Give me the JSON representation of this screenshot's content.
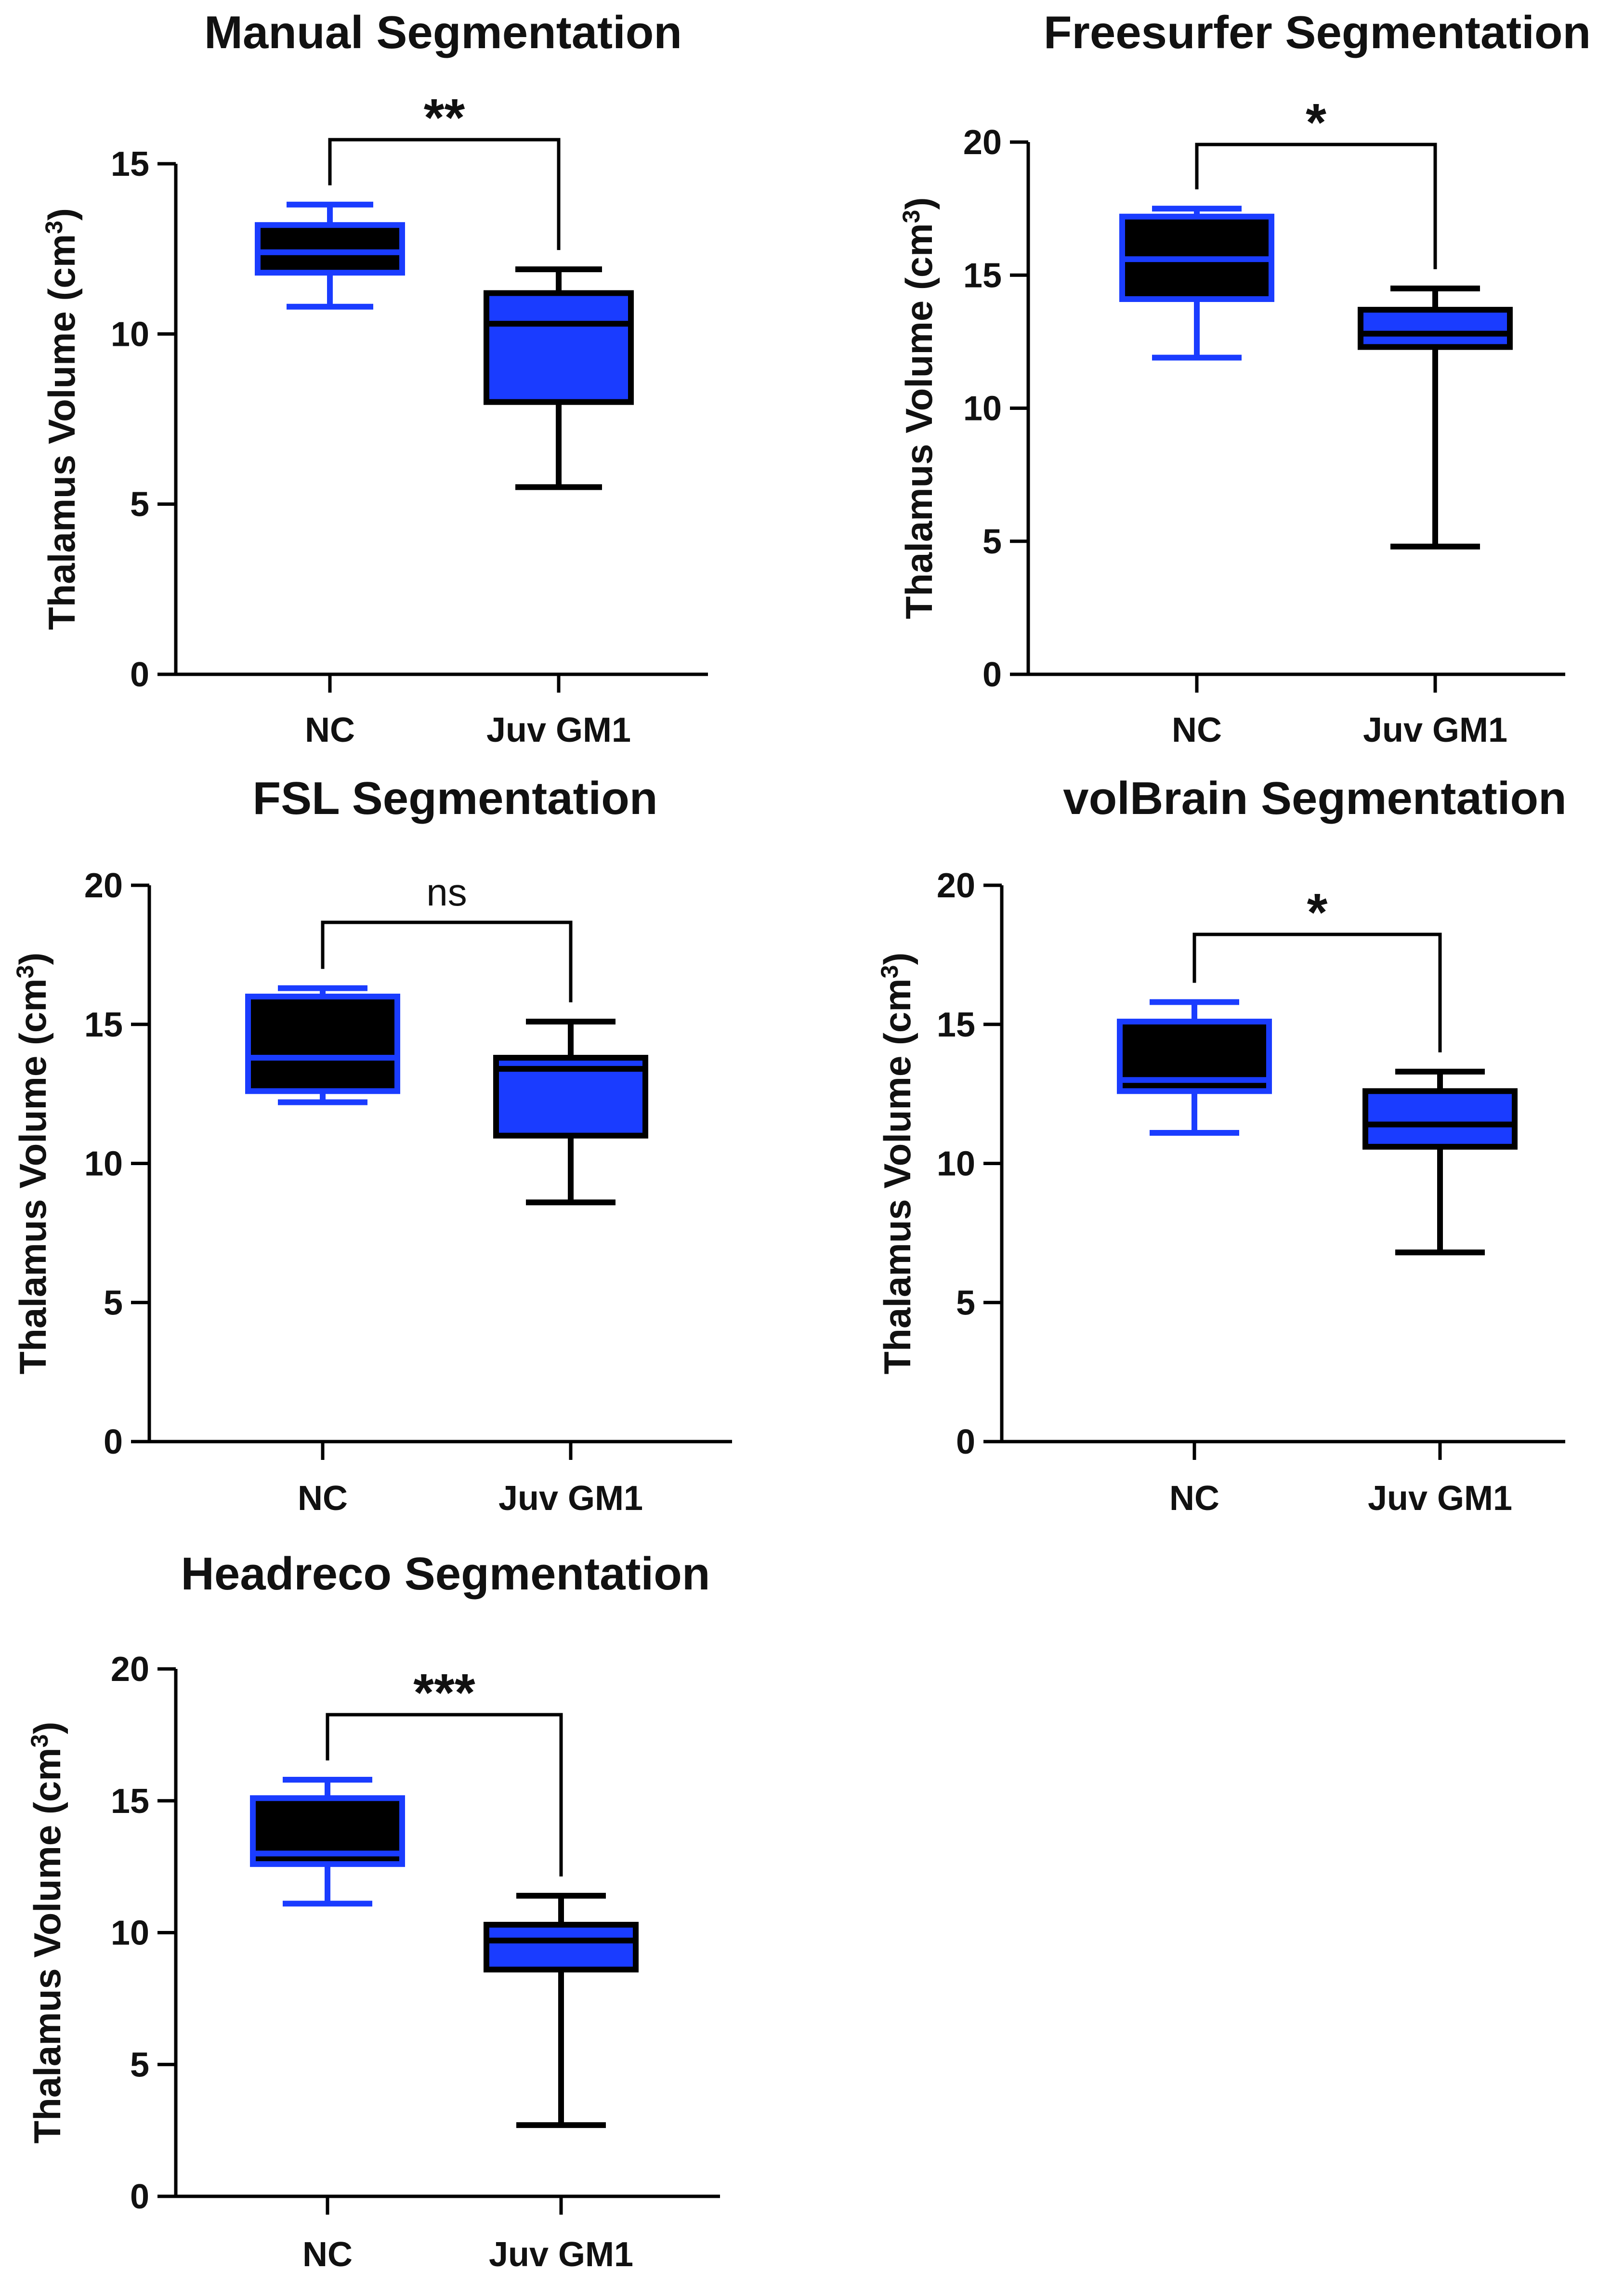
{
  "chart_data": [
    {
      "type": "box",
      "title": "Manual Segmentation",
      "ylabel": "Thalamus Volume (cm",
      "ylabel_sup": "3",
      "ylabel_end": ")",
      "categories": [
        "NC",
        "Juv GM1"
      ],
      "ylim": [
        0,
        15
      ],
      "yticks": [
        0,
        5,
        10,
        15
      ],
      "significance": "**",
      "groups": [
        {
          "name": "NC",
          "min": 10.8,
          "q1": 11.8,
          "median": 12.4,
          "q3": 13.2,
          "max": 13.8,
          "fill": "#000000",
          "stroke": "#1a3cff"
        },
        {
          "name": "Juv GM1",
          "min": 5.5,
          "q1": 8.0,
          "median": 10.3,
          "q3": 11.2,
          "max": 11.9,
          "fill": "#1a3cff",
          "stroke": "#000000"
        }
      ]
    },
    {
      "type": "box",
      "title": "Freesurfer Segmentation",
      "ylabel": "Thalamus Volume (cm",
      "ylabel_sup": "3",
      "ylabel_end": ")",
      "categories": [
        "NC",
        "Juv GM1"
      ],
      "ylim": [
        0,
        20
      ],
      "yticks": [
        0,
        5,
        10,
        15,
        20
      ],
      "significance": "*",
      "groups": [
        {
          "name": "NC",
          "min": 11.9,
          "q1": 14.1,
          "median": 15.6,
          "q3": 17.2,
          "max": 17.5,
          "fill": "#000000",
          "stroke": "#1a3cff"
        },
        {
          "name": "Juv GM1",
          "min": 4.8,
          "q1": 12.3,
          "median": 12.8,
          "q3": 13.7,
          "max": 14.5,
          "fill": "#1a3cff",
          "stroke": "#000000"
        }
      ]
    },
    {
      "type": "box",
      "title": "FSL Segmentation",
      "ylabel": "Thalamus Volume (cm",
      "ylabel_sup": "3",
      "ylabel_end": ")",
      "categories": [
        "NC",
        "Juv GM1"
      ],
      "ylim": [
        0,
        20
      ],
      "yticks": [
        0,
        5,
        10,
        15,
        20
      ],
      "significance": "ns",
      "groups": [
        {
          "name": "NC",
          "min": 12.2,
          "q1": 12.6,
          "median": 13.8,
          "q3": 16.0,
          "max": 16.3,
          "fill": "#000000",
          "stroke": "#1a3cff"
        },
        {
          "name": "Juv GM1",
          "min": 8.6,
          "q1": 11.0,
          "median": 13.4,
          "q3": 13.8,
          "max": 15.1,
          "fill": "#1a3cff",
          "stroke": "#000000"
        }
      ]
    },
    {
      "type": "box",
      "title": "volBrain Segmentation",
      "ylabel": "Thalamus Volume (cm",
      "ylabel_sup": "3",
      "ylabel_end": ")",
      "categories": [
        "NC",
        "Juv GM1"
      ],
      "ylim": [
        0,
        20
      ],
      "yticks": [
        0,
        5,
        10,
        15,
        20
      ],
      "significance": "*",
      "groups": [
        {
          "name": "NC",
          "min": 11.1,
          "q1": 12.6,
          "median": 13.0,
          "q3": 15.1,
          "max": 15.8,
          "fill": "#000000",
          "stroke": "#1a3cff"
        },
        {
          "name": "Juv GM1",
          "min": 6.8,
          "q1": 10.6,
          "median": 11.4,
          "q3": 12.6,
          "max": 13.3,
          "fill": "#1a3cff",
          "stroke": "#000000"
        }
      ]
    },
    {
      "type": "box",
      "title": "Headreco Segmentation",
      "ylabel": "Thalamus Volume (cm",
      "ylabel_sup": "3",
      "ylabel_end": ")",
      "categories": [
        "NC",
        "Juv GM1"
      ],
      "ylim": [
        0,
        20
      ],
      "yticks": [
        0,
        5,
        10,
        15,
        20
      ],
      "significance": "***",
      "groups": [
        {
          "name": "NC",
          "min": 11.1,
          "q1": 12.6,
          "median": 13.0,
          "q3": 15.1,
          "max": 15.8,
          "fill": "#000000",
          "stroke": "#1a3cff"
        },
        {
          "name": "Juv GM1",
          "min": 2.7,
          "q1": 8.6,
          "median": 9.7,
          "q3": 10.3,
          "max": 11.4,
          "fill": "#1a3cff",
          "stroke": "#000000"
        }
      ]
    }
  ]
}
